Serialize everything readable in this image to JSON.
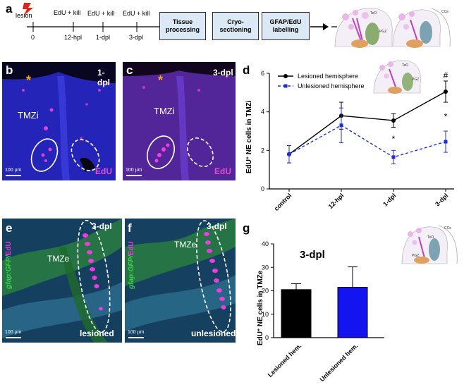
{
  "panel_letters": {
    "a": "a",
    "b": "b",
    "c": "c",
    "d": "d",
    "e": "e",
    "f": "f",
    "g": "g"
  },
  "timeline": {
    "lesion_label": "lesion",
    "treatments": [
      "EdU + kill",
      "EdU + kill",
      "EdU + kill"
    ],
    "ticks": [
      "0",
      "12-hpl",
      "1-dpl",
      "3-dpl"
    ],
    "steps": [
      "Tissue processing",
      "Cryo-sectioning",
      "GFAP/EdU labelling"
    ]
  },
  "micrographs": {
    "b": {
      "time": "1-dpl",
      "region": "TMZi",
      "stain": "EdU",
      "scale": "100 µm",
      "asterisk": "*"
    },
    "c": {
      "time": "3-dpl",
      "region": "TMZi",
      "stain": "EdU",
      "scale": "100 µm",
      "asterisk": "*"
    },
    "e": {
      "time": "3-dpl",
      "region": "TMZe",
      "stain_prefix": "gfap:GFP/",
      "stain_suffix": "EdU",
      "condition": "lesioned",
      "scale": "100 µm"
    },
    "f": {
      "time": "3-dpl",
      "region": "TMZe",
      "stain_prefix": "gfap:GFP/",
      "stain_suffix": "EdU",
      "condition": "unlesioned",
      "scale": "100 µm"
    }
  },
  "schematic_labels": {
    "teo": "TeO",
    "pgz": "PGZ",
    "cce": "CCe"
  },
  "chart_data": [
    {
      "type": "line",
      "panel": "d",
      "categories": [
        "control",
        "12-hpl",
        "1-dpl",
        "3-dpl"
      ],
      "ylabel_prefix": "EdU",
      "ylabel_sup": "+",
      "ylabel_suffix": " NE cells in TMZi",
      "ylim": [
        0,
        6
      ],
      "yticks": [
        "0",
        "2",
        "4",
        "6"
      ],
      "series": [
        {
          "name": "Lesioned hemisphere",
          "values": [
            1.8,
            3.8,
            3.55,
            5.05
          ],
          "err": [
            0.45,
            0.7,
            0.35,
            0.55
          ],
          "color": "#000000",
          "style": "solid"
        },
        {
          "name": "Unlesioned hemisphere",
          "values": [
            1.8,
            3.3,
            1.65,
            2.45
          ],
          "err": [
            0.45,
            0.9,
            0.35,
            0.55
          ],
          "color": "#1f2fd6",
          "style": "dashed"
        }
      ],
      "annotations": [
        {
          "category": "3-dpl",
          "text": "#"
        },
        {
          "category": "1-dpl",
          "text": "*"
        },
        {
          "category": "3-dpl",
          "text": "*"
        }
      ],
      "legend_placement": "top-left"
    },
    {
      "type": "bar",
      "panel": "g",
      "title": "3-dpl",
      "categories": [
        "Lesioned hem.",
        "Unlesioned hem."
      ],
      "values": [
        20.5,
        21.5
      ],
      "err": [
        2.5,
        8.7
      ],
      "colors": [
        "#000000",
        "#1414f0"
      ],
      "ylabel_prefix": "EdU",
      "ylabel_sup": "+",
      "ylabel_suffix": " NE cells in TMZe",
      "ylim": [
        0,
        40
      ],
      "yticks": [
        "0",
        "10",
        "20",
        "30",
        "40"
      ]
    }
  ]
}
